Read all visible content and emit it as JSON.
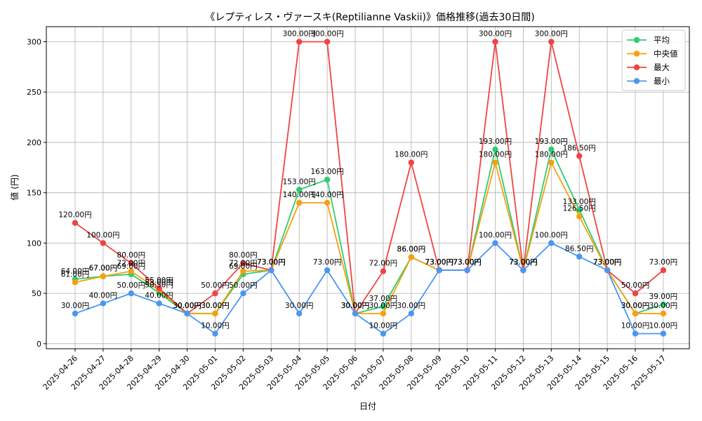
{
  "chart_data": {
    "type": "line",
    "title": "《レプティレス・ヴァースキ(Reptilianne Vaskii)》価格推移(過去30日間)",
    "xlabel": "日付",
    "ylabel": "値 (円)",
    "ylim": [
      -5,
      315
    ],
    "yticks": [
      0,
      50,
      100,
      150,
      200,
      250,
      300
    ],
    "grid": true,
    "legend_position": "top-right",
    "label_suffix": "円",
    "categories": [
      "2025-04-26",
      "2025-04-27",
      "2025-04-28",
      "2025-04-29",
      "2025-04-30",
      "2025-05-01",
      "2025-05-02",
      "2025-05-03",
      "2025-05-04",
      "2025-05-05",
      "2025-05-06",
      "2025-05-07",
      "2025-05-08",
      "2025-05-09",
      "2025-05-10",
      "2025-05-11",
      "2025-05-12",
      "2025-05-13",
      "2025-05-14",
      "2025-05-15",
      "2025-05-16",
      "2025-05-17"
    ],
    "series": [
      {
        "name": "平均",
        "color": "#2ecc71",
        "values": [
          64,
          67,
          69,
          50.5,
          30,
          30,
          69,
          73,
          153,
          163,
          30,
          37,
          86,
          73,
          73,
          193,
          73,
          193,
          133,
          73,
          30,
          39
        ]
      },
      {
        "name": "中央値",
        "color": "#f5a00c",
        "values": [
          61,
          67,
          72,
          53,
          30,
          30,
          72,
          73,
          140,
          140,
          30,
          30,
          86,
          73,
          73,
          180,
          73,
          180,
          126.5,
          73,
          30,
          30
        ]
      },
      {
        "name": "最大",
        "color": "#ef4444",
        "values": [
          120,
          100,
          80,
          55,
          30,
          50,
          80,
          73,
          300,
          300,
          30,
          72,
          180,
          73,
          73,
          300,
          73,
          300,
          186.5,
          73,
          50,
          73
        ]
      },
      {
        "name": "最小",
        "color": "#4b96f3",
        "values": [
          30,
          40,
          50,
          40,
          30,
          10,
          50,
          73,
          30,
          73,
          30,
          10,
          30,
          73,
          73,
          100,
          73,
          100,
          86.5,
          73,
          10,
          10
        ]
      }
    ]
  }
}
